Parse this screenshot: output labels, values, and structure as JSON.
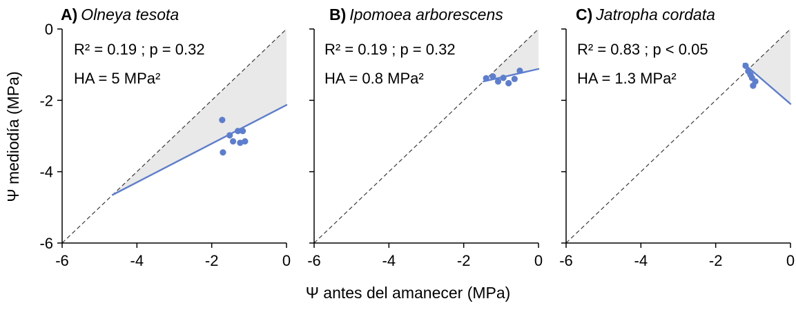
{
  "colors": {
    "accent_blue": "#5d7ece",
    "shade_gray": "#e9e9e9",
    "identity_dash": "#3a3a3a",
    "axis_black": "#000000"
  },
  "chart_data": {
    "type": "scatter",
    "xlabel": "Ψ antes del amanecer (MPa)",
    "ylabel": "Ψ mediodía (MPa)",
    "xlim": [
      -6,
      0
    ],
    "ylim": [
      -6,
      0
    ],
    "x_ticks": [
      -6,
      -4,
      -2,
      0
    ],
    "y_ticks": [
      0,
      -2,
      -4,
      -6
    ],
    "identity_line": "1:1 dashed diagonal",
    "legend": "grey wedge = hysteresis area (HA) between 1:1 line and blue regression line",
    "panels": [
      {
        "label": "A)",
        "species": "Olneya tesota",
        "stats": "R² = 0.19 ; p = 0.32",
        "ha": "HA = 5 MPa²",
        "points": [
          [
            -1.72,
            -2.55
          ],
          [
            -1.52,
            -2.98
          ],
          [
            -1.3,
            -2.86
          ],
          [
            -1.17,
            -2.86
          ],
          [
            -1.43,
            -3.15
          ],
          [
            -1.24,
            -3.19
          ],
          [
            -1.11,
            -3.15
          ],
          [
            -1.7,
            -3.46
          ]
        ],
        "regression": [
          [
            -4.65,
            -4.65
          ],
          [
            0,
            -2.13
          ]
        ],
        "shade": [
          [
            -4.65,
            -4.65
          ],
          [
            0,
            0
          ],
          [
            0,
            -2.13
          ]
        ]
      },
      {
        "label": "B)",
        "species": "Ipomoea arborescens",
        "stats": "R² = 0.19 ; p = 0.32",
        "ha": "HA = 0.8 MPa²",
        "points": [
          [
            -1.4,
            -1.38
          ],
          [
            -1.22,
            -1.33
          ],
          [
            -1.08,
            -1.47
          ],
          [
            -0.94,
            -1.37
          ],
          [
            -0.8,
            -1.52
          ],
          [
            -0.64,
            -1.4
          ],
          [
            -0.5,
            -1.17
          ]
        ],
        "regression": [
          [
            -1.47,
            -1.47
          ],
          [
            0,
            -1.12
          ]
        ],
        "shade": [
          [
            -1.47,
            -1.47
          ],
          [
            0,
            0
          ],
          [
            0,
            -1.12
          ]
        ]
      },
      {
        "label": "C)",
        "species": "Jatropha cordata",
        "stats": "R² = 0.83 ; p < 0.05",
        "ha": "HA = 1.3 MPa²",
        "points": [
          [
            -1.2,
            -1.03
          ],
          [
            -1.13,
            -1.18
          ],
          [
            -1.07,
            -1.28
          ],
          [
            -1.03,
            -1.37
          ],
          [
            -0.94,
            -1.47
          ],
          [
            -1.0,
            -1.59
          ]
        ],
        "regression": [
          [
            -1.25,
            -0.97
          ],
          [
            0,
            -2.1
          ]
        ],
        "shade": [
          [
            -1.1,
            -1.1
          ],
          [
            0,
            0
          ],
          [
            0,
            -2.1
          ]
        ]
      }
    ]
  }
}
